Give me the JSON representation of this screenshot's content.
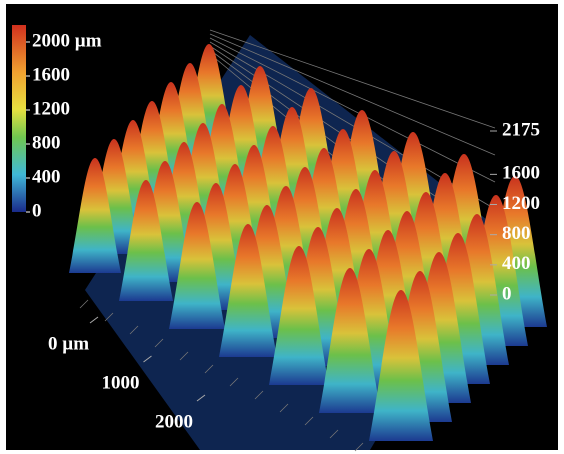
{
  "chart_data": {
    "type": "surface3d",
    "colorbar": {
      "lim": [
        0,
        2000
      ],
      "ticks": [
        {
          "value": 2000,
          "label": "2000 µm"
        },
        1600,
        1200,
        800,
        400,
        0
      ]
    },
    "zlim": [
      0,
      2175
    ],
    "zticks": [
      2175,
      1600,
      1200,
      800,
      400,
      0
    ],
    "xlim": [
      0,
      2000
    ],
    "xticks": [
      {
        "value": 0,
        "label": "0 µm"
      },
      1000,
      2000
    ]
  }
}
